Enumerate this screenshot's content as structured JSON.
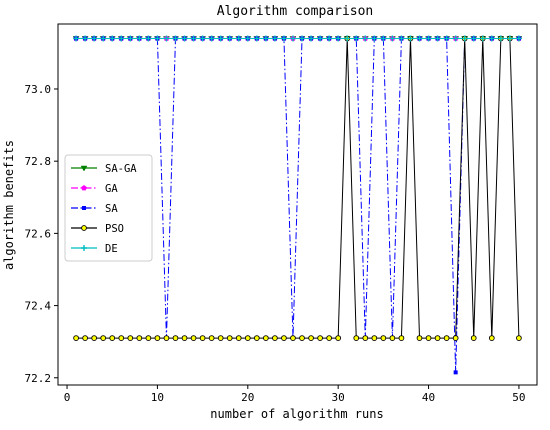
{
  "chart_data": {
    "type": "line",
    "title": "Algorithm comparison",
    "xlabel": "number of algorithm runs",
    "ylabel": "algorithm benefits",
    "xlim": [
      -1,
      52
    ],
    "ylim": [
      72.18,
      73.18
    ],
    "xticks": [
      0,
      10,
      20,
      30,
      40,
      50
    ],
    "yticks": [
      72.2,
      72.4,
      72.6,
      72.8,
      73.0
    ],
    "ytick_labels": [
      "72.2",
      "72.4",
      "72.6",
      "72.8",
      "73.0"
    ],
    "legend_position": "center-left",
    "x": [
      1,
      2,
      3,
      4,
      5,
      6,
      7,
      8,
      9,
      10,
      11,
      12,
      13,
      14,
      15,
      16,
      17,
      18,
      19,
      20,
      21,
      22,
      23,
      24,
      25,
      26,
      27,
      28,
      29,
      30,
      31,
      32,
      33,
      34,
      35,
      36,
      37,
      38,
      39,
      40,
      41,
      42,
      43,
      44,
      45,
      46,
      47,
      48,
      49,
      50
    ],
    "series": [
      {
        "name": "SA-GA",
        "color": "#008000",
        "marker": "triangle-down",
        "linestyle": "solid",
        "values": [
          73.14,
          73.14,
          73.14,
          73.14,
          73.14,
          73.14,
          73.14,
          73.14,
          73.14,
          73.14,
          73.14,
          73.14,
          73.14,
          73.14,
          73.14,
          73.14,
          73.14,
          73.14,
          73.14,
          73.14,
          73.14,
          73.14,
          73.14,
          73.14,
          73.14,
          73.14,
          73.14,
          73.14,
          73.14,
          73.14,
          73.14,
          73.14,
          73.14,
          73.14,
          73.14,
          73.14,
          73.14,
          73.14,
          73.14,
          73.14,
          73.14,
          73.14,
          73.14,
          73.14,
          73.14,
          73.14,
          73.14,
          73.14,
          73.14,
          73.14
        ]
      },
      {
        "name": "GA",
        "color": "#ff00ff",
        "marker": "pentagon",
        "linestyle": "dashdot",
        "values": [
          73.14,
          73.14,
          73.14,
          73.14,
          73.14,
          73.14,
          73.14,
          73.14,
          73.14,
          73.14,
          73.14,
          73.14,
          73.14,
          73.14,
          73.14,
          73.14,
          73.14,
          73.14,
          73.14,
          73.14,
          73.14,
          73.14,
          73.14,
          73.14,
          73.14,
          73.14,
          73.14,
          73.14,
          73.14,
          73.14,
          73.14,
          73.14,
          73.14,
          73.14,
          73.14,
          73.14,
          73.14,
          73.14,
          73.14,
          73.14,
          73.14,
          73.14,
          73.14,
          73.14,
          73.14,
          73.14,
          73.14,
          73.14,
          73.14,
          73.14
        ]
      },
      {
        "name": "SA",
        "color": "#0000ff",
        "marker": "square",
        "linestyle": "dashdot",
        "values": [
          73.14,
          73.14,
          73.14,
          73.14,
          73.14,
          73.14,
          73.14,
          73.14,
          73.14,
          73.14,
          72.31,
          73.14,
          73.14,
          73.14,
          73.14,
          73.14,
          73.14,
          73.14,
          73.14,
          73.14,
          73.14,
          73.14,
          73.14,
          73.14,
          72.31,
          73.14,
          73.14,
          73.14,
          73.14,
          73.14,
          73.14,
          73.14,
          72.31,
          73.14,
          73.14,
          72.31,
          73.14,
          73.14,
          73.14,
          73.14,
          73.14,
          73.14,
          72.215,
          73.14,
          73.14,
          73.14,
          73.14,
          73.14,
          73.14,
          73.14
        ]
      },
      {
        "name": "PSO",
        "color": "#000000",
        "marker": "circle-yellow",
        "linestyle": "solid",
        "values": [
          72.31,
          72.31,
          72.31,
          72.31,
          72.31,
          72.31,
          72.31,
          72.31,
          72.31,
          72.31,
          72.31,
          72.31,
          72.31,
          72.31,
          72.31,
          72.31,
          72.31,
          72.31,
          72.31,
          72.31,
          72.31,
          72.31,
          72.31,
          72.31,
          72.31,
          72.31,
          72.31,
          72.31,
          72.31,
          72.31,
          73.14,
          72.31,
          72.31,
          72.31,
          72.31,
          72.31,
          72.31,
          73.14,
          72.31,
          72.31,
          72.31,
          72.31,
          72.31,
          73.14,
          72.31,
          73.14,
          72.31,
          73.14,
          73.14,
          72.31
        ]
      },
      {
        "name": "DE",
        "color": "#00bfbf",
        "marker": "plus",
        "linestyle": "solid",
        "values": [
          73.14,
          73.14,
          73.14,
          73.14,
          73.14,
          73.14,
          73.14,
          73.14,
          73.14,
          73.14,
          73.14,
          73.14,
          73.14,
          73.14,
          73.14,
          73.14,
          73.14,
          73.14,
          73.14,
          73.14,
          73.14,
          73.14,
          73.14,
          73.14,
          73.14,
          73.14,
          73.14,
          73.14,
          73.14,
          73.14,
          73.14,
          73.14,
          73.14,
          73.14,
          73.14,
          73.14,
          73.14,
          73.14,
          73.14,
          73.14,
          73.14,
          73.14,
          73.14,
          73.14,
          73.14,
          73.14,
          73.14,
          73.14,
          73.14,
          73.14
        ]
      }
    ]
  }
}
